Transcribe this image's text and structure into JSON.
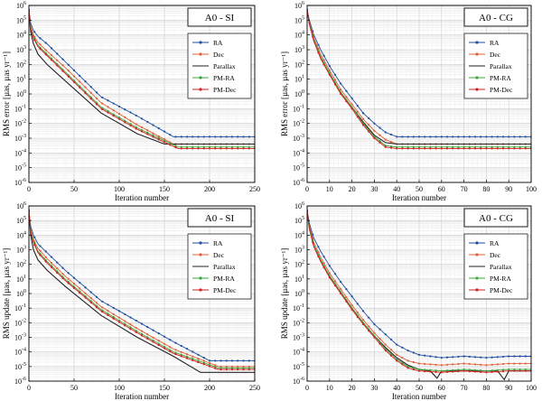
{
  "chart_data": [
    {
      "type": "line",
      "title": "A0 - SI",
      "xlabel": "Iteration number",
      "ylabel": "RMS error [µas, µas yr⁻¹]",
      "xlim": [
        0,
        250
      ],
      "ylim_log10": [
        -6,
        6
      ],
      "xticks": [
        0,
        50,
        100,
        150,
        200,
        250
      ],
      "legend_position": "top-right",
      "series": [
        {
          "name": "RA",
          "color": "#1f4fa0",
          "marker": "dot",
          "x": [
            0,
            2,
            5,
            10,
            20,
            40,
            80,
            120,
            160,
            170,
            250
          ],
          "y_log10": [
            5.7,
            4.8,
            4.3,
            3.9,
            3.4,
            2.2,
            -0.2,
            -1.5,
            -2.9,
            -2.9,
            -2.9
          ]
        },
        {
          "name": "Dec",
          "color": "#e0603a",
          "marker": "dot",
          "x": [
            0,
            2,
            5,
            10,
            20,
            40,
            80,
            120,
            160,
            175,
            250
          ],
          "y_log10": [
            5.6,
            4.6,
            4.0,
            3.5,
            2.9,
            1.8,
            -0.6,
            -2.1,
            -3.4,
            -3.4,
            -3.4
          ]
        },
        {
          "name": "Parallax",
          "color": "#222222",
          "marker": "none",
          "x": [
            0,
            2,
            5,
            10,
            20,
            40,
            80,
            120,
            150,
            160,
            250
          ],
          "y_log10": [
            5.5,
            4.2,
            3.4,
            2.7,
            2.0,
            0.9,
            -1.3,
            -2.7,
            -3.4,
            -3.4,
            -3.4
          ]
        },
        {
          "name": "PM-RA",
          "color": "#3ca83c",
          "marker": "dot",
          "x": [
            0,
            2,
            5,
            10,
            20,
            40,
            80,
            120,
            165,
            180,
            250
          ],
          "y_log10": [
            5.6,
            4.5,
            3.9,
            3.3,
            2.7,
            1.5,
            -0.9,
            -2.3,
            -3.6,
            -3.6,
            -3.6
          ]
        },
        {
          "name": "PM-Dec",
          "color": "#d22020",
          "marker": "dot",
          "x": [
            0,
            2,
            5,
            10,
            20,
            40,
            80,
            120,
            165,
            180,
            250
          ],
          "y_log10": [
            5.6,
            4.4,
            3.8,
            3.2,
            2.6,
            1.4,
            -1.0,
            -2.4,
            -3.7,
            -3.7,
            -3.7
          ]
        }
      ]
    },
    {
      "type": "line",
      "title": "A0 - CG",
      "xlabel": "Iteration number",
      "ylabel": "RMS error [µas, µas yr⁻¹]",
      "xlim": [
        0,
        100
      ],
      "ylim_log10": [
        -6,
        6
      ],
      "xticks": [
        0,
        10,
        20,
        30,
        40,
        50,
        60,
        70,
        80,
        90,
        100
      ],
      "legend_position": "top-right",
      "series": [
        {
          "name": "RA",
          "color": "#1f4fa0",
          "marker": "dot",
          "x": [
            0,
            1,
            3,
            6,
            10,
            15,
            20,
            25,
            30,
            35,
            40,
            45,
            100
          ],
          "y_log10": [
            5.7,
            5.0,
            4.0,
            3.0,
            1.9,
            0.7,
            -0.3,
            -1.3,
            -2.0,
            -2.6,
            -2.9,
            -2.9,
            -2.9
          ]
        },
        {
          "name": "Dec",
          "color": "#e0603a",
          "marker": "dot",
          "x": [
            0,
            1,
            3,
            6,
            10,
            15,
            20,
            25,
            30,
            35,
            40,
            45,
            100
          ],
          "y_log10": [
            5.6,
            4.9,
            3.8,
            2.7,
            1.6,
            0.3,
            -0.7,
            -1.7,
            -2.5,
            -3.1,
            -3.4,
            -3.4,
            -3.4
          ]
        },
        {
          "name": "Parallax",
          "color": "#222222",
          "marker": "none",
          "x": [
            0,
            1,
            3,
            6,
            10,
            15,
            20,
            25,
            30,
            35,
            40,
            45,
            100
          ],
          "y_log10": [
            5.6,
            4.8,
            3.6,
            2.5,
            1.4,
            0.1,
            -0.9,
            -1.9,
            -2.8,
            -3.3,
            -3.4,
            -3.4,
            -3.4
          ]
        },
        {
          "name": "PM-RA",
          "color": "#3ca83c",
          "marker": "dot",
          "x": [
            0,
            1,
            3,
            6,
            10,
            15,
            20,
            25,
            30,
            35,
            40,
            45,
            100
          ],
          "y_log10": [
            5.6,
            4.8,
            3.7,
            2.5,
            1.4,
            0.1,
            -0.9,
            -2.0,
            -2.9,
            -3.5,
            -3.6,
            -3.6,
            -3.6
          ]
        },
        {
          "name": "PM-Dec",
          "color": "#d22020",
          "marker": "dot",
          "x": [
            0,
            1,
            3,
            6,
            10,
            15,
            20,
            25,
            30,
            35,
            40,
            45,
            100
          ],
          "y_log10": [
            5.6,
            4.7,
            3.6,
            2.4,
            1.3,
            0.0,
            -1.0,
            -2.1,
            -3.0,
            -3.6,
            -3.7,
            -3.7,
            -3.7
          ]
        }
      ]
    },
    {
      "type": "line",
      "title": "A0 - SI",
      "xlabel": "Iteration number",
      "ylabel": "RMS update [µas, µas yr⁻¹]",
      "xlim": [
        0,
        250
      ],
      "ylim_log10": [
        -6,
        6
      ],
      "xticks": [
        0,
        50,
        100,
        150,
        200,
        250
      ],
      "legend_position": "top-right",
      "series": [
        {
          "name": "RA",
          "color": "#1f4fa0",
          "marker": "dot",
          "x": [
            0,
            2,
            5,
            10,
            20,
            40,
            80,
            120,
            160,
            200,
            250
          ],
          "y_log10": [
            5.7,
            4.6,
            4.0,
            3.4,
            2.8,
            1.6,
            -0.5,
            -1.9,
            -3.3,
            -4.6,
            -4.6
          ]
        },
        {
          "name": "Dec",
          "color": "#e0603a",
          "marker": "dot",
          "x": [
            0,
            2,
            5,
            10,
            20,
            40,
            80,
            120,
            160,
            210,
            250
          ],
          "y_log10": [
            5.6,
            4.4,
            3.7,
            3.1,
            2.4,
            1.2,
            -0.9,
            -2.4,
            -3.8,
            -5.0,
            -5.0
          ]
        },
        {
          "name": "Parallax",
          "color": "#222222",
          "marker": "none",
          "x": [
            0,
            2,
            5,
            10,
            20,
            40,
            80,
            120,
            160,
            190,
            250
          ],
          "y_log10": [
            5.5,
            4.0,
            3.0,
            2.3,
            1.6,
            0.5,
            -1.5,
            -3.0,
            -4.3,
            -5.4,
            -5.4
          ]
        },
        {
          "name": "PM-RA",
          "color": "#3ca83c",
          "marker": "dot",
          "x": [
            0,
            2,
            5,
            10,
            20,
            40,
            80,
            120,
            160,
            210,
            250
          ],
          "y_log10": [
            5.6,
            4.3,
            3.6,
            2.9,
            2.2,
            1.0,
            -1.1,
            -2.6,
            -4.0,
            -5.1,
            -5.1
          ]
        },
        {
          "name": "PM-Dec",
          "color": "#d22020",
          "marker": "dot",
          "x": [
            0,
            2,
            5,
            10,
            20,
            40,
            80,
            120,
            160,
            210,
            250
          ],
          "y_log10": [
            5.6,
            4.2,
            3.5,
            2.8,
            2.1,
            0.9,
            -1.2,
            -2.7,
            -4.1,
            -5.2,
            -5.2
          ]
        }
      ]
    },
    {
      "type": "line",
      "title": "A0 - CG",
      "xlabel": "Iteration number",
      "ylabel": "RMS update [µas, µas yr⁻¹]",
      "xlim": [
        0,
        100
      ],
      "ylim_log10": [
        -6,
        6
      ],
      "xticks": [
        0,
        10,
        20,
        30,
        40,
        50,
        60,
        70,
        80,
        90,
        100
      ],
      "legend_position": "top-right",
      "series": [
        {
          "name": "RA",
          "color": "#1f4fa0",
          "marker": "dot",
          "x": [
            0,
            1,
            3,
            6,
            10,
            15,
            20,
            25,
            30,
            35,
            40,
            45,
            50,
            60,
            70,
            80,
            90,
            100
          ],
          "y_log10": [
            5.7,
            4.8,
            3.8,
            2.9,
            1.9,
            0.8,
            -0.2,
            -1.2,
            -2.1,
            -2.8,
            -3.5,
            -3.9,
            -4.2,
            -4.4,
            -4.3,
            -4.4,
            -4.3,
            -4.3
          ]
        },
        {
          "name": "Dec",
          "color": "#e0603a",
          "marker": "dot",
          "x": [
            0,
            1,
            3,
            6,
            10,
            15,
            20,
            25,
            30,
            35,
            40,
            45,
            50,
            60,
            70,
            80,
            90,
            100
          ],
          "y_log10": [
            5.6,
            4.6,
            3.5,
            2.5,
            1.4,
            0.3,
            -0.8,
            -1.8,
            -2.7,
            -3.5,
            -4.2,
            -4.6,
            -4.8,
            -4.9,
            -4.8,
            -4.9,
            -4.8,
            -4.8
          ]
        },
        {
          "name": "Parallax",
          "color": "#222222",
          "marker": "none",
          "x": [
            0,
            1,
            3,
            6,
            10,
            15,
            20,
            25,
            30,
            35,
            40,
            45,
            50,
            55,
            58,
            60,
            70,
            80,
            85,
            88,
            90,
            100
          ],
          "y_log10": [
            5.6,
            4.5,
            3.3,
            2.3,
            1.2,
            0.1,
            -1.0,
            -2.0,
            -2.9,
            -3.7,
            -4.4,
            -4.9,
            -5.2,
            -5.3,
            -5.8,
            -5.3,
            -5.3,
            -5.3,
            -5.3,
            -5.9,
            -5.3,
            -5.3
          ]
        },
        {
          "name": "PM-RA",
          "color": "#3ca83c",
          "marker": "dot",
          "x": [
            0,
            1,
            3,
            6,
            10,
            15,
            20,
            25,
            30,
            35,
            40,
            45,
            50,
            60,
            70,
            80,
            90,
            100
          ],
          "y_log10": [
            5.6,
            4.5,
            3.3,
            2.3,
            1.2,
            0.1,
            -1.0,
            -2.0,
            -2.9,
            -3.8,
            -4.5,
            -5.0,
            -5.2,
            -5.3,
            -5.2,
            -5.3,
            -5.2,
            -5.2
          ]
        },
        {
          "name": "PM-Dec",
          "color": "#d22020",
          "marker": "dot",
          "x": [
            0,
            1,
            3,
            6,
            10,
            15,
            20,
            25,
            30,
            35,
            40,
            45,
            50,
            60,
            70,
            80,
            90,
            100
          ],
          "y_log10": [
            5.6,
            4.4,
            3.2,
            2.2,
            1.1,
            0.0,
            -1.1,
            -2.1,
            -3.0,
            -3.9,
            -4.6,
            -5.1,
            -5.3,
            -5.4,
            -5.3,
            -5.4,
            -5.3,
            -5.3
          ]
        }
      ]
    }
  ]
}
